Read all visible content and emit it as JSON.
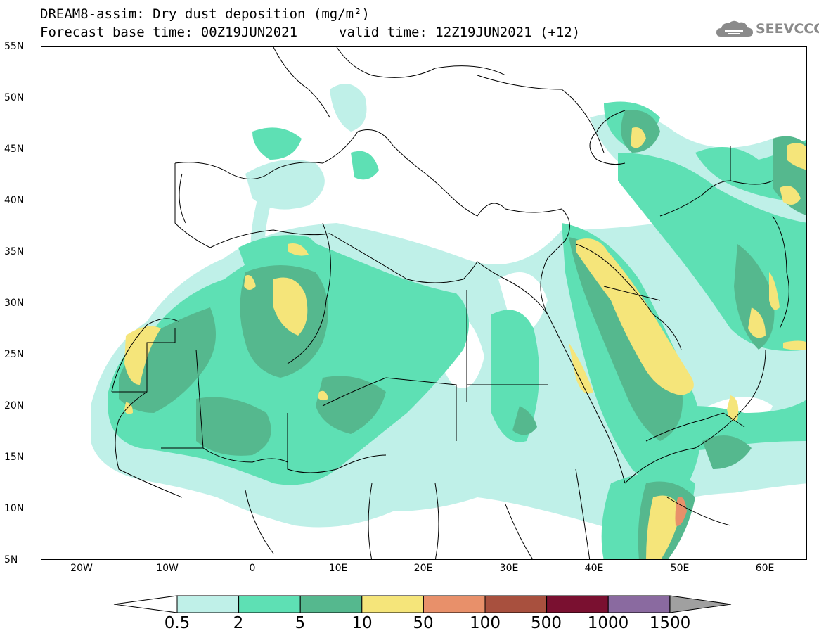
{
  "title": {
    "line1": "DREAM8-assim: Dry dust deposition (mg/m²)",
    "line2": "Forecast base time: 00Z19JUN2021",
    "line2b": "valid time: 12Z19JUN2021 (+12)"
  },
  "logo": {
    "text": "SEEVCCC"
  },
  "map": {
    "lat_ticks": [
      "55N",
      "50N",
      "45N",
      "40N",
      "35N",
      "30N",
      "25N",
      "20N",
      "15N",
      "10N",
      "5N"
    ],
    "lon_ticks": [
      "20W",
      "10W",
      "0",
      "10E",
      "20E",
      "30E",
      "40E",
      "50E",
      "60E"
    ]
  },
  "colorbar": {
    "labels": [
      "0.5",
      "2",
      "5",
      "10",
      "50",
      "100",
      "500",
      "1000",
      "1500"
    ],
    "colors": [
      "#bff0e8",
      "#5ee0b4",
      "#55b88e",
      "#f5e57a",
      "#e8906a",
      "#a8503e",
      "#7a1030",
      "#8a6aa0",
      "#a0a0a0"
    ],
    "under_color": "#ffffff",
    "over_color": "#a0a0a0"
  }
}
